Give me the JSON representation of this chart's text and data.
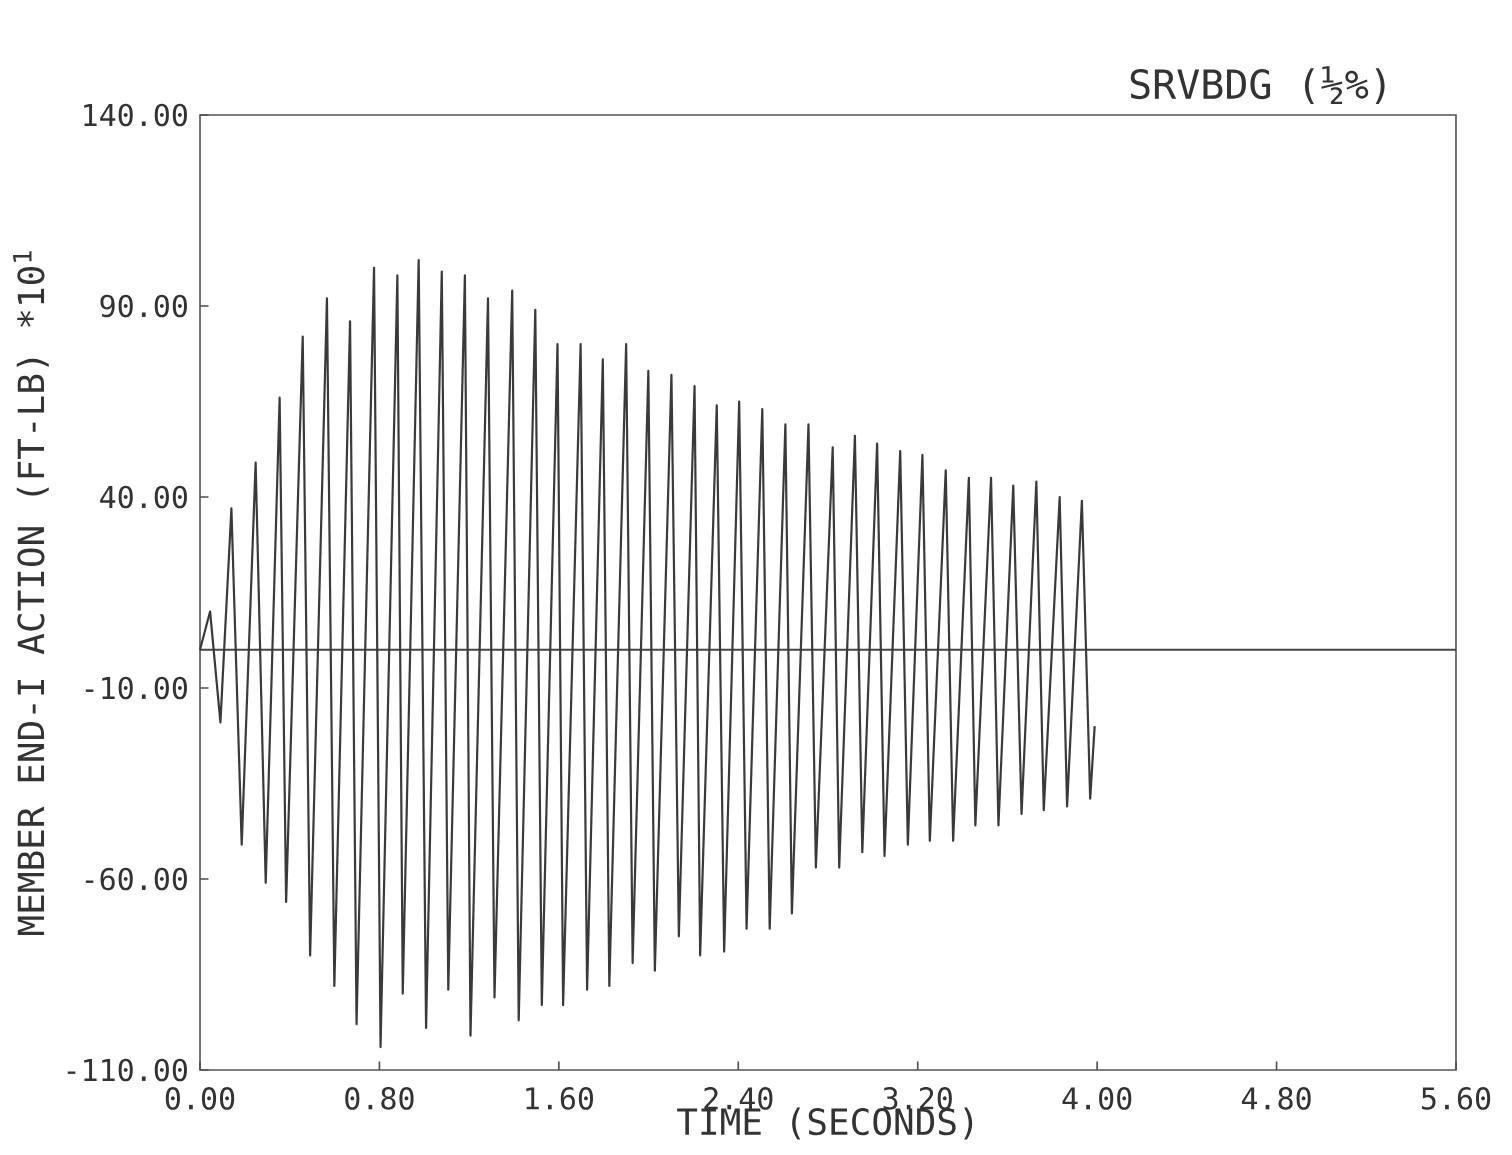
{
  "chart_data": {
    "type": "line",
    "xlabel": "TIME (SECONDS)",
    "ylabel": "MEMBER END-I ACTION (FT-LB) *10$^{1}$",
    "annotations": [
      "SRVBDG (½%)"
    ],
    "xlim": [
      0,
      5.6
    ],
    "ylim": [
      -110,
      140
    ],
    "xticks": [
      {
        "value": 0,
        "label": "0.00"
      },
      {
        "value": 0.8,
        "label": "0.80"
      },
      {
        "value": 1.6,
        "label": "1.60"
      },
      {
        "value": 2.4,
        "label": "2.40"
      },
      {
        "value": 3.2,
        "label": "3.20"
      },
      {
        "value": 4.0,
        "label": "4.00"
      },
      {
        "value": 4.8,
        "label": "4.80"
      },
      {
        "value": 5.6,
        "label": "5.60"
      }
    ],
    "yticks": [
      {
        "value": -110,
        "label": "-110.00"
      },
      {
        "value": -60,
        "label": "-60.00"
      },
      {
        "value": -10,
        "label": "-10.00"
      },
      {
        "value": 40,
        "label": "40.00"
      },
      {
        "value": 90,
        "label": "90.00"
      },
      {
        "value": 140,
        "label": "140.00"
      }
    ],
    "ref_lines": [
      {
        "axis": "y",
        "value": 0,
        "color": "#444444"
      }
    ],
    "series": [
      {
        "color": "#3a3a3a",
        "x": [
          0,
          0.045,
          0.091,
          0.14,
          0.186,
          0.248,
          0.293,
          0.355,
          0.384,
          0.458,
          0.491,
          0.566,
          0.599,
          0.669,
          0.698,
          0.776,
          0.805,
          0.88,
          0.904,
          0.975,
          1.008,
          1.078,
          1.107,
          1.181,
          1.206,
          1.284,
          1.313,
          1.392,
          1.421,
          1.495,
          1.524,
          1.594,
          1.619,
          1.697,
          1.726,
          1.796,
          1.825,
          1.9,
          1.929,
          1.999,
          2.028,
          2.102,
          2.135,
          2.205,
          2.23,
          2.304,
          2.337,
          2.404,
          2.437,
          2.507,
          2.54,
          2.61,
          2.639,
          2.713,
          2.746,
          2.821,
          2.85,
          2.92,
          2.953,
          3.019,
          3.052,
          3.122,
          3.156,
          3.221,
          3.254,
          3.325,
          3.358,
          3.428,
          3.457,
          3.527,
          3.56,
          3.626,
          3.663,
          3.729,
          3.762,
          3.833,
          3.866,
          3.932,
          3.969,
          3.989
        ],
        "values": [
          0,
          10,
          -19,
          37,
          -51,
          49,
          -61,
          66,
          -66,
          82,
          -80,
          92,
          -88,
          86,
          -98,
          100,
          -104,
          98,
          -90,
          102,
          -99,
          99,
          -89,
          98,
          -101,
          92,
          -91,
          94,
          -97,
          89,
          -93,
          80,
          -93,
          80,
          -89,
          76,
          -88,
          80,
          -82,
          73,
          -84,
          72,
          -75,
          69,
          -80,
          64,
          -79,
          65,
          -73,
          63,
          -73,
          59,
          -69,
          59,
          -57,
          53,
          -57,
          56,
          -53,
          54,
          -54,
          52,
          -51,
          51,
          -50,
          47,
          -50,
          45,
          -46,
          45,
          -46,
          43,
          -43,
          44,
          -42,
          40,
          -41,
          39,
          -39,
          -20
        ]
      }
    ]
  }
}
